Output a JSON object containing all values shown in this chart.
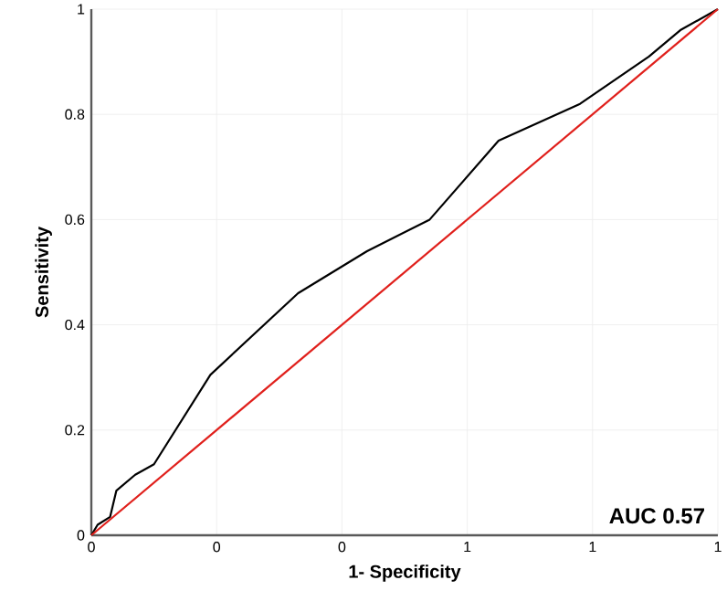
{
  "chart_data": {
    "type": "line",
    "xlabel": "1- Specificity",
    "ylabel": "Sensitivity",
    "xlim": [
      0,
      1
    ],
    "ylim": [
      0,
      1
    ],
    "xticks": [
      0,
      {
        "value": 0.2,
        "label": "0"
      },
      {
        "value": 0.4,
        "label": "0"
      },
      {
        "value": 0.6,
        "label": "1"
      },
      {
        "value": 0.8,
        "label": "1"
      },
      1
    ],
    "yticks": [
      0,
      0.2,
      0.4,
      0.6,
      0.8,
      1
    ],
    "grid": true,
    "annotations": [
      "AUC 0.57"
    ],
    "series": [
      {
        "color": "#000000",
        "x": [
          0,
          0.01,
          0.03,
          0.04,
          0.07,
          0.1,
          0.19,
          0.33,
          0.44,
          0.54,
          0.65,
          0.78,
          0.89,
          0.94,
          1
        ],
        "values": [
          0,
          0.02,
          0.035,
          0.085,
          0.115,
          0.135,
          0.305,
          0.46,
          0.54,
          0.6,
          0.75,
          0.82,
          0.91,
          0.96,
          1
        ]
      },
      {
        "color": "#e0201c",
        "x": [
          0,
          1
        ],
        "values": [
          0,
          1
        ]
      }
    ]
  }
}
